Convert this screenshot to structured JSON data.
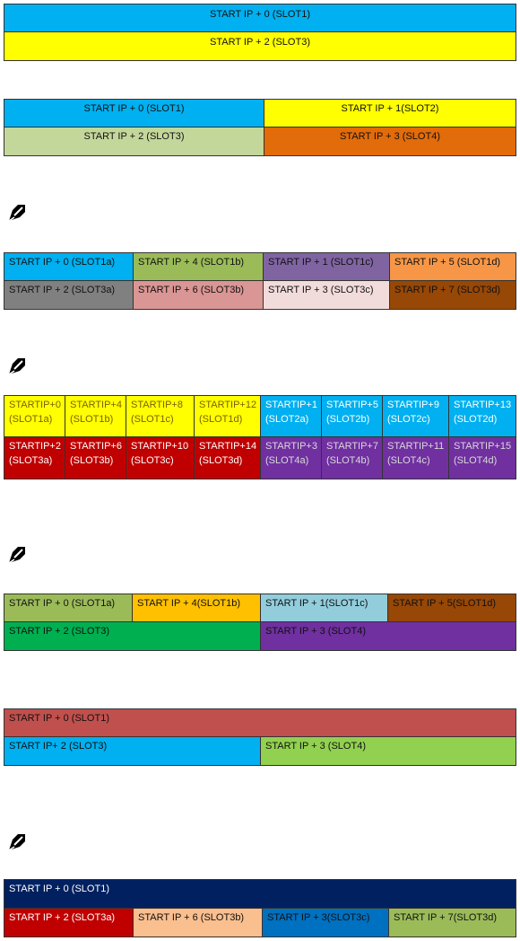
{
  "colors": {
    "blue": "#00b0f0",
    "yellow": "#ffff00",
    "sage": "#c4d79b",
    "orange": "#e26b0a",
    "olive": "#9bbb59",
    "purple": "#8064a2",
    "peach": "#f79646",
    "gray": "#808080",
    "rose": "#da9694",
    "pink": "#f2dcdb",
    "brown": "#974706",
    "red": "#c00000",
    "violet": "#7030a0",
    "gold": "#ffc000",
    "lightblue": "#92cddc",
    "green": "#00b050",
    "brick": "#c0504d",
    "lime": "#92d050",
    "navy": "#002060",
    "tan": "#fabf8f",
    "midblue": "#0070c0"
  },
  "g1": {
    "r1": "START IP + 0 (SLOT1)",
    "r2": "START IP + 2 (SLOT3)"
  },
  "g2": {
    "a": "START IP + 0 (SLOT1)",
    "b": "START IP + 1(SLOT2)",
    "c": "START IP + 2 (SLOT3)",
    "d": "START IP + 3 (SLOT4)"
  },
  "g3": {
    "r1": [
      "START IP + 0 (SLOT1a)",
      "START IP + 4 (SLOT1b)",
      "START IP + 1 (SLOT1c)",
      "START IP + 5 (SLOT1d)"
    ],
    "r2": [
      "START IP + 2 (SLOT3a)",
      "START IP + 6 (SLOT3b)",
      "START IP + 3 (SLOT3c)",
      "START IP + 7 (SLOT3d)"
    ]
  },
  "g4": {
    "r1": [
      {
        "l1": "STARTIP+0",
        "l2": "(SLOT1a)"
      },
      {
        "l1": "STARTIP+4",
        "l2": "(SLOT1b)"
      },
      {
        "l1": "STARTIP+8",
        "l2": "(SLOT1c)"
      },
      {
        "l1": "STARTIP+12",
        "l2": "(SLOT1d)"
      },
      {
        "l1": "STARTIP+1",
        "l2": "(SLOT2a)"
      },
      {
        "l1": "STARTIP+5",
        "l2": "(SLOT2b)"
      },
      {
        "l1": "STARTIP+9",
        "l2": "(SLOT2c)"
      },
      {
        "l1": "STARTIP+13",
        "l2": "(SLOT2d)"
      }
    ],
    "r2": [
      {
        "l1": "STARTIP+2",
        "l2": "(SLOT3a)"
      },
      {
        "l1": "STARTIP+6",
        "l2": "(SLOT3b)"
      },
      {
        "l1": "STARTIP+10",
        "l2": "(SLOT3c)"
      },
      {
        "l1": "STARTIP+14",
        "l2": "(SLOT3d)"
      },
      {
        "l1": "STARTIP+3",
        "l2": "(SLOT4a)"
      },
      {
        "l1": "STARTIP+7",
        "l2": "(SLOT4b)"
      },
      {
        "l1": "STARTIP+11",
        "l2": "(SLOT4c)"
      },
      {
        "l1": "STARTIP+15",
        "l2": "(SLOT4d)"
      }
    ]
  },
  "g5": {
    "r1": [
      "START IP + 0 (SLOT1a)",
      "START IP + 4(SLOT1b)",
      "START IP + 1(SLOT1c)",
      "START IP + 5(SLOT1d)"
    ],
    "r2": [
      "START IP + 2 (SLOT3)",
      "START IP + 3 (SLOT4)"
    ]
  },
  "g6": {
    "r1": "START IP + 0 (SLOT1)",
    "r2": [
      "START IP+ 2 (SLOT3)",
      "START IP + 3 (SLOT4)"
    ]
  },
  "g7": {
    "r1": "START IP + 0 (SLOT1)",
    "r2": [
      "START IP + 2 (SLOT3a)",
      "START IP + 6 (SLOT3b)",
      "START IP + 3(SLOT3c)",
      "START IP + 7(SLOT3d)"
    ]
  },
  "icons": {
    "note": "note-pencil-icon"
  }
}
